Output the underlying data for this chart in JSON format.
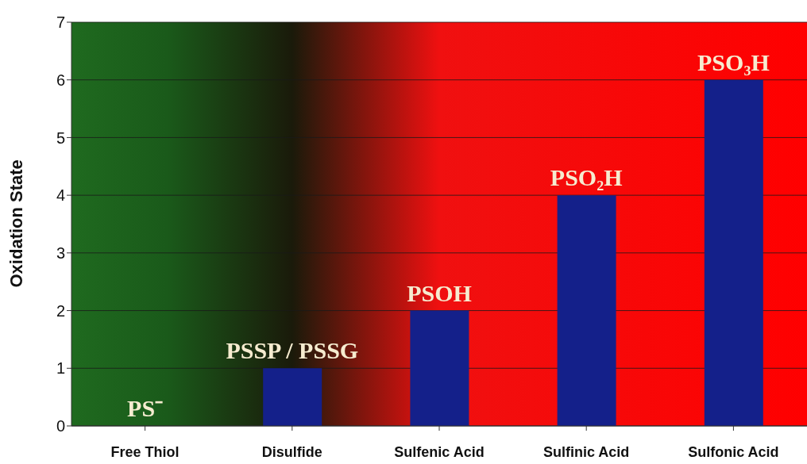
{
  "chart_data": {
    "type": "bar",
    "ylabel": "Oxidation State",
    "categories": [
      "Free Thiol",
      "Disulfide",
      "Sulfenic Acid",
      "Sulfinic Acid",
      "Sulfonic Acid"
    ],
    "values": [
      0,
      1,
      2,
      4,
      6
    ],
    "color": "#14208a",
    "value_labels": [
      "PS⁻",
      "PSSP / PSSG",
      "PSOH",
      "PSO₂H",
      "PSO₃H"
    ],
    "ylim": [
      0,
      7
    ],
    "yticks": [
      0,
      1,
      2,
      3,
      4,
      5,
      6,
      7
    ],
    "grid": "y"
  }
}
